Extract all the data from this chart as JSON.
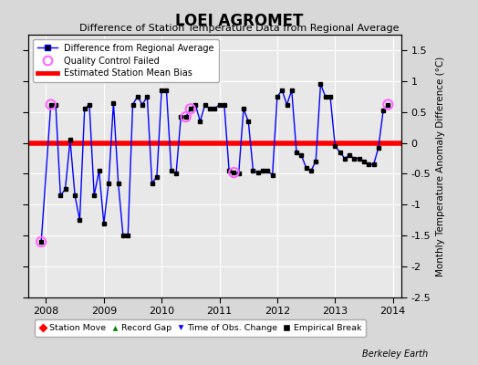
{
  "title": "LOEI AGROMET",
  "subtitle": "Difference of Station Temperature Data from Regional Average",
  "ylabel": "Monthly Temperature Anomaly Difference (°C)",
  "bias": 0.0,
  "xlim": [
    2007.7,
    2014.15
  ],
  "ylim": [
    -2.5,
    1.75
  ],
  "yticks": [
    -2.5,
    -2.0,
    -1.5,
    -1.0,
    -0.5,
    0.0,
    0.5,
    1.0,
    1.5
  ],
  "xticks": [
    2008,
    2009,
    2010,
    2011,
    2012,
    2013,
    2014
  ],
  "fig_bg": "#d8d8d8",
  "ax_bg": "#e8e8e8",
  "line_color": "#0000ff",
  "bias_color": "#ff0000",
  "marker_color": "#000000",
  "qc_color": "#ff66ff",
  "data_x": [
    2007.917,
    2008.083,
    2008.167,
    2008.25,
    2008.333,
    2008.417,
    2008.5,
    2008.583,
    2008.667,
    2008.75,
    2008.833,
    2008.917,
    2009.0,
    2009.083,
    2009.167,
    2009.25,
    2009.333,
    2009.417,
    2009.5,
    2009.583,
    2009.667,
    2009.75,
    2009.833,
    2009.917,
    2010.0,
    2010.083,
    2010.167,
    2010.25,
    2010.333,
    2010.417,
    2010.5,
    2010.583,
    2010.667,
    2010.75,
    2010.833,
    2010.917,
    2011.0,
    2011.083,
    2011.167,
    2011.25,
    2011.333,
    2011.417,
    2011.5,
    2011.583,
    2011.667,
    2011.75,
    2011.833,
    2011.917,
    2012.0,
    2012.083,
    2012.167,
    2012.25,
    2012.333,
    2012.417,
    2012.5,
    2012.583,
    2012.667,
    2012.75,
    2012.833,
    2012.917,
    2013.0,
    2013.083,
    2013.167,
    2013.25,
    2013.333,
    2013.417,
    2013.5,
    2013.583,
    2013.667,
    2013.75,
    2013.833,
    2013.917
  ],
  "data_y": [
    -1.6,
    0.62,
    0.62,
    -0.85,
    -0.75,
    0.05,
    -0.85,
    -1.25,
    0.55,
    0.62,
    -0.85,
    -0.45,
    -1.3,
    -0.65,
    0.65,
    -0.65,
    -1.5,
    -1.5,
    0.62,
    0.75,
    0.62,
    0.75,
    -0.65,
    -0.55,
    0.85,
    0.85,
    -0.45,
    -0.5,
    0.42,
    0.42,
    0.55,
    0.62,
    0.35,
    0.62,
    0.55,
    0.55,
    0.62,
    0.62,
    -0.45,
    -0.48,
    -0.5,
    0.55,
    0.35,
    -0.45,
    -0.48,
    -0.45,
    -0.45,
    -0.52,
    0.75,
    0.85,
    0.62,
    0.85,
    -0.15,
    -0.2,
    -0.4,
    -0.45,
    -0.3,
    0.95,
    0.75,
    0.75,
    -0.05,
    -0.15,
    -0.25,
    -0.2,
    -0.25,
    -0.25,
    -0.3,
    -0.35,
    -0.35,
    -0.08,
    0.52,
    0.62
  ],
  "qc_x": [
    2007.917,
    2008.083,
    2010.417,
    2010.5,
    2011.25,
    2013.917
  ],
  "qc_y": [
    -1.6,
    0.62,
    0.42,
    0.55,
    -0.48,
    0.62
  ],
  "watermark": "Berkeley Earth"
}
